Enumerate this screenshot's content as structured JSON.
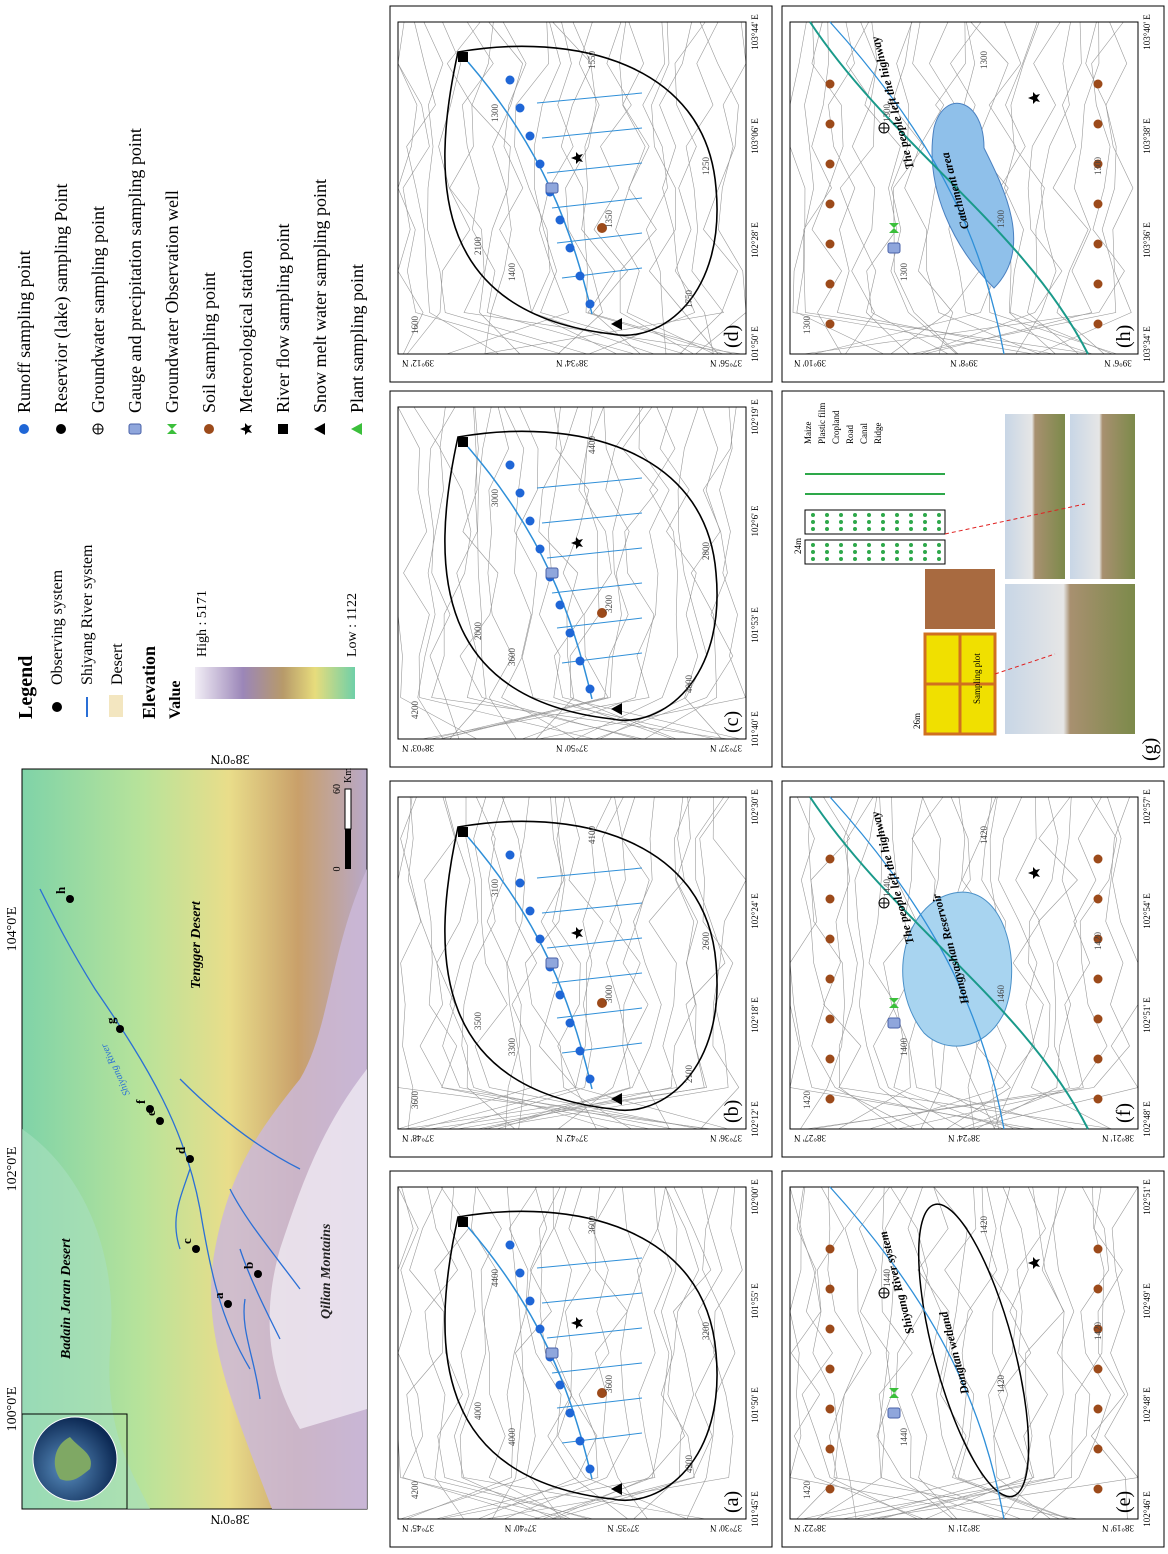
{
  "overview": {
    "lon_labels": [
      "100°0'E",
      "102°0'E",
      "104°0'E"
    ],
    "lat_labels": [
      "38°0'N",
      "38°0'N"
    ],
    "places": [
      "Badain Jaran Desert",
      "Tengger Desert",
      "Qilian Montains",
      "Shiyang River"
    ],
    "site_labels": [
      "a",
      "b",
      "c",
      "d",
      "e",
      "f",
      "g",
      "h"
    ],
    "scale": [
      "0",
      "60",
      "Km"
    ]
  },
  "legend": {
    "title": "Legend",
    "items": [
      "Observing system",
      "Shiyang River system",
      "Desert"
    ],
    "elevation_title": "Elevation",
    "value_title": "Value",
    "high": "High : 5171",
    "low": "Low : 1122",
    "points": [
      "Runoff sampling point",
      "Reservior (lake) sampling Point",
      "Groundwater sampling point",
      "Gauge and precipitation sampling point",
      "Groundwater Observation well",
      "Soil sampling point",
      "Meteorological station",
      "River flow sampling point",
      "Snow melt water sampling point",
      "Plant sampling point"
    ]
  },
  "panels": [
    {
      "label": "(a)",
      "lon": [
        "101°45' E",
        "101°50' E",
        "101°55' E",
        "102°00' E"
      ],
      "lat": [
        "37°30' N",
        "37°35' N",
        "37°40' N",
        "37°45' N"
      ],
      "contours": [
        "4200",
        "4000",
        "3600",
        "3200",
        "4400",
        "3600",
        "4200",
        "4000"
      ]
    },
    {
      "label": "(b)",
      "lon": [
        "102°12' E",
        "102°18' E",
        "102°24' E",
        "102°30' E"
      ],
      "lat": [
        "37°36' N",
        "37°42' N",
        "37°48' N"
      ],
      "contours": [
        "3600",
        "3300",
        "3000",
        "2600",
        "3100",
        "4100",
        "2100",
        "3500"
      ]
    },
    {
      "label": "(c)",
      "lon": [
        "101°40' E",
        "101°53' E",
        "102°6' E",
        "102°19' E"
      ],
      "lat": [
        "37°37' N",
        "37°50' N",
        "38°03' N"
      ],
      "contours": [
        "4200",
        "3600",
        "3200",
        "2800",
        "3000",
        "4400",
        "4000",
        "2000"
      ]
    },
    {
      "label": "(d)",
      "lon": [
        "101°50' E",
        "102°28' E",
        "103°06' E",
        "103°44' E"
      ],
      "lat": [
        "37°56' N",
        "38°34' N",
        "39°12' N"
      ],
      "contours": [
        "1600",
        "1400",
        "1350",
        "1250",
        "1300",
        "1550",
        "1750",
        "2100"
      ]
    },
    {
      "label": "(e)",
      "lon": [
        "102°46' E",
        "102°48' E",
        "102°49' E",
        "102°51' E"
      ],
      "lat": [
        "38°19' N",
        "38°21' N",
        "38°22' N"
      ],
      "contours": [
        "1420",
        "1440",
        "1420",
        "1420",
        "1440",
        "1420"
      ],
      "names": [
        "Dongtan wetland",
        "Shiyang River system"
      ]
    },
    {
      "label": "(f)",
      "lon": [
        "102°48' E",
        "102°51' E",
        "102°54' E",
        "102°57' E"
      ],
      "lat": [
        "38°21' N",
        "38°24' N",
        "38°27' N"
      ],
      "contours": [
        "1420",
        "1400",
        "1460",
        "1420",
        "1440",
        "1420"
      ],
      "names": [
        "Hongyashan Reservoir",
        "The people left the highway"
      ]
    },
    {
      "label": "(g)",
      "lon": [],
      "lat": [],
      "contours": [],
      "names": [
        "Maize",
        "Plastic film",
        "Cropland",
        "Road",
        "Canal",
        "Ridge",
        "Sampling plot",
        "24m",
        "26m"
      ]
    },
    {
      "label": "(h)",
      "lon": [
        "103°34' E",
        "103°36' E",
        "103°38' E",
        "103°40' E"
      ],
      "lat": [
        "39°6' N",
        "39°8' N",
        "39°10' N"
      ],
      "contours": [
        "1300",
        "1300",
        "1300",
        "1300",
        "1300",
        "1300"
      ],
      "names": [
        "Catchment area",
        "The people left the highway"
      ]
    }
  ]
}
